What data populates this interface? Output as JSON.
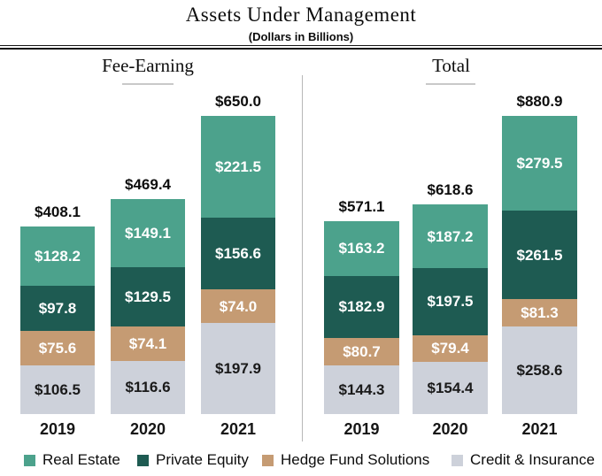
{
  "page": {
    "title": "Assets Under Management",
    "subtitle": "(Dollars in Billions)"
  },
  "chart_data": {
    "type": "bar",
    "stacked": true,
    "title": "Assets Under Management",
    "subtitle": "(Dollars in Billions)",
    "value_unit": "USD billions",
    "legend_position": "bottom",
    "series_order_top_to_bottom": [
      "Real Estate",
      "Private Equity",
      "Hedge Fund Solutions",
      "Credit & Insurance"
    ],
    "groups": [
      {
        "label": "Fee-Earning",
        "categories": [
          "2019",
          "2020",
          "2021"
        ],
        "totals": [
          408.1,
          469.4,
          650.0
        ],
        "total_labels": [
          "$408.1",
          "$469.4",
          "$650.0"
        ],
        "series": [
          {
            "name": "Real Estate",
            "values": [
              128.2,
              149.1,
              221.5
            ],
            "labels": [
              "$128.2",
              "$149.1",
              "$221.5"
            ]
          },
          {
            "name": "Private Equity",
            "values": [
              97.8,
              129.5,
              156.6
            ],
            "labels": [
              "$97.8",
              "$129.5",
              "$156.6"
            ]
          },
          {
            "name": "Hedge Fund Solutions",
            "values": [
              75.6,
              74.1,
              74.0
            ],
            "labels": [
              "$75.6",
              "$74.1",
              "$74.0"
            ]
          },
          {
            "name": "Credit & Insurance",
            "values": [
              106.5,
              116.6,
              197.9
            ],
            "labels": [
              "$106.5",
              "$116.6",
              "$197.9"
            ]
          }
        ]
      },
      {
        "label": "Total",
        "categories": [
          "2019",
          "2020",
          "2021"
        ],
        "totals": [
          571.1,
          618.6,
          880.9
        ],
        "total_labels": [
          "$571.1",
          "$618.6",
          "$880.9"
        ],
        "series": [
          {
            "name": "Real Estate",
            "values": [
              163.2,
              187.2,
              279.5
            ],
            "labels": [
              "$163.2",
              "$187.2",
              "$279.5"
            ]
          },
          {
            "name": "Private Equity",
            "values": [
              182.9,
              197.5,
              261.5
            ],
            "labels": [
              "$182.9",
              "$197.5",
              "$261.5"
            ]
          },
          {
            "name": "Hedge Fund Solutions",
            "values": [
              80.7,
              79.4,
              81.3
            ],
            "labels": [
              "$80.7",
              "$79.4",
              "$81.3"
            ]
          },
          {
            "name": "Credit & Insurance",
            "values": [
              144.3,
              154.4,
              258.6
            ],
            "labels": [
              "$144.3",
              "$154.4",
              "$258.6"
            ]
          }
        ]
      }
    ],
    "legend": [
      {
        "name": "Real Estate",
        "color": "#4ca28c",
        "text_color": "#ffffff"
      },
      {
        "name": "Private Equity",
        "color": "#1e5b52",
        "text_color": "#ffffff"
      },
      {
        "name": "Hedge Fund Solutions",
        "color": "#c59b73",
        "text_color": "#ffffff"
      },
      {
        "name": "Credit & Insurance",
        "color": "#cdd1da",
        "text_color": "#1a1a1a"
      }
    ]
  }
}
